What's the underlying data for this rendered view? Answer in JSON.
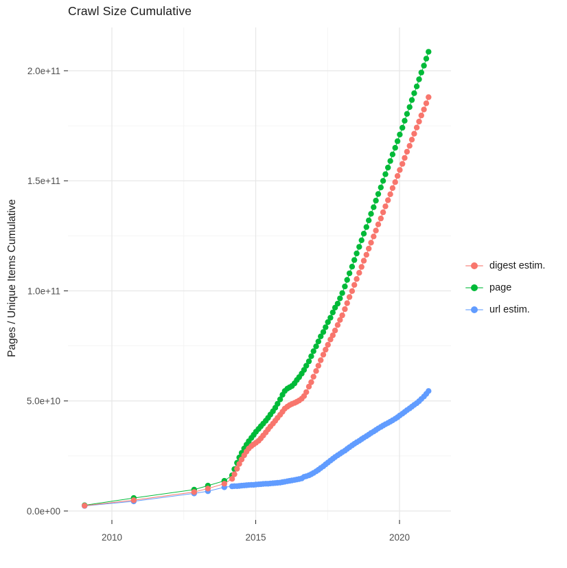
{
  "title": "Crawl Size Cumulative",
  "y_axis_title": "Pages / Unique Items Cumulative",
  "legend": {
    "position": "right",
    "items": [
      {
        "id": "digest",
        "label": "digest estim.",
        "color": "#F8766D"
      },
      {
        "id": "page",
        "label": "page",
        "color": "#00BA38"
      },
      {
        "id": "url",
        "label": "url estim.",
        "color": "#619CFF"
      }
    ]
  },
  "colors": {
    "background": "#ffffff",
    "major_grid": "#e7e7e7",
    "minor_grid": "#f2f2f2",
    "tick_mark": "#333333",
    "tick_label": "#4d4d4d",
    "digest": "#F8766D",
    "page": "#00BA38",
    "url": "#619CFF"
  },
  "chart_data": {
    "type": "scatter",
    "title": "Crawl Size Cumulative",
    "xlabel": "",
    "ylabel": "Pages / Unique Items Cumulative",
    "grid": true,
    "legend_position": "right",
    "x_unit": "year (decimal)",
    "value_scale": "values are billions; multiply by 1e9 for absolute counts",
    "xlim": [
      2008.45,
      2021.85
    ],
    "ylim_billions": [
      -4,
      220
    ],
    "x_major_ticks": [
      2010,
      2015,
      2020
    ],
    "x_tick_labels": [
      "2010",
      "2015",
      "2020"
    ],
    "x_minor_ticks": [
      2012.5,
      2017.5
    ],
    "y_major_ticks_billions": [
      0,
      50,
      100,
      150,
      200
    ],
    "y_tick_labels": [
      "0.0e+00",
      "5.0e+10",
      "1.0e+11",
      "1.5e+11",
      "2.0e+11"
    ],
    "y_minor_ticks_billions": [
      25,
      75,
      125,
      175
    ],
    "x": [
      2009.05,
      2010.76,
      2012.86,
      2013.34,
      2013.91,
      2014.18,
      2014.26,
      2014.35,
      2014.43,
      2014.51,
      2014.6,
      2014.68,
      2014.76,
      2014.85,
      2014.93,
      2015.01,
      2015.1,
      2015.18,
      2015.26,
      2015.35,
      2015.43,
      2015.51,
      2015.6,
      2015.68,
      2015.76,
      2015.85,
      2015.93,
      2016.01,
      2016.1,
      2016.18,
      2016.26,
      2016.35,
      2016.43,
      2016.51,
      2016.6,
      2016.68,
      2016.76,
      2016.85,
      2016.93,
      2017.01,
      2017.1,
      2017.18,
      2017.26,
      2017.35,
      2017.43,
      2017.51,
      2017.6,
      2017.68,
      2017.76,
      2017.85,
      2017.93,
      2018.01,
      2018.1,
      2018.18,
      2018.26,
      2018.35,
      2018.43,
      2018.51,
      2018.6,
      2018.68,
      2018.76,
      2018.85,
      2018.93,
      2019.01,
      2019.1,
      2019.18,
      2019.26,
      2019.35,
      2019.43,
      2019.51,
      2019.6,
      2019.68,
      2019.76,
      2019.85,
      2019.93,
      2020.01,
      2020.1,
      2020.18,
      2020.26,
      2020.35,
      2020.43,
      2020.51,
      2020.6,
      2020.68,
      2020.76,
      2020.85,
      2020.93,
      2021.01
    ],
    "series": [
      {
        "name": "digest estim.",
        "color": "#F8766D",
        "values_billions": [
          2.4,
          4.9,
          8.6,
          10.2,
          12.4,
          14.6,
          16.7,
          19.2,
          21.4,
          23.4,
          25.3,
          27.0,
          28.4,
          29.5,
          30.3,
          31.0,
          31.9,
          33.0,
          34.3,
          35.7,
          37.1,
          38.4,
          39.7,
          41.0,
          42.3,
          43.7,
          45.1,
          46.5,
          47.4,
          48.1,
          48.6,
          49.1,
          49.6,
          50.2,
          51.0,
          52.2,
          54.0,
          56.5,
          58.5,
          61.0,
          63.6,
          66.0,
          68.5,
          71.0,
          73.3,
          75.5,
          77.9,
          79.8,
          82.0,
          84.5,
          86.8,
          88.9,
          91.7,
          94.4,
          97.2,
          99.9,
          102.7,
          105.4,
          108.2,
          110.9,
          113.7,
          116.4,
          119.2,
          121.9,
          124.7,
          127.4,
          130.2,
          132.9,
          135.7,
          138.4,
          141.2,
          143.9,
          146.7,
          149.4,
          152.2,
          154.9,
          157.7,
          160.4,
          163.2,
          165.9,
          168.7,
          171.4,
          174.2,
          176.9,
          179.7,
          182.4,
          185.2,
          188.0
        ]
      },
      {
        "name": "page",
        "color": "#00BA38",
        "values_billions": [
          2.6,
          5.9,
          9.7,
          11.5,
          13.7,
          16.2,
          19.0,
          21.9,
          24.3,
          26.4,
          28.4,
          30.1,
          31.7,
          33.2,
          34.6,
          36.0,
          37.3,
          38.5,
          39.7,
          41.0,
          42.3,
          43.8,
          45.3,
          46.9,
          48.7,
          50.7,
          52.8,
          54.5,
          55.6,
          56.2,
          56.8,
          58.0,
          59.5,
          60.8,
          62.4,
          64.1,
          66.0,
          68.0,
          70.3,
          72.6,
          74.8,
          77.0,
          79.3,
          81.3,
          83.5,
          85.8,
          87.8,
          90.2,
          92.4,
          94.2,
          96.6,
          99.0,
          102.0,
          105.0,
          108.0,
          111.0,
          114.0,
          117.0,
          120.0,
          123.0,
          126.0,
          129.0,
          132.0,
          135.0,
          138.0,
          141.0,
          144.0,
          147.0,
          150.0,
          153.0,
          156.0,
          159.0,
          162.0,
          165.0,
          168.0,
          171.0,
          174.1,
          177.3,
          180.4,
          183.5,
          186.7,
          189.8,
          192.9,
          196.1,
          199.2,
          202.3,
          205.5,
          208.6
        ]
      },
      {
        "name": "url estim.",
        "color": "#619CFF",
        "values_billions": [
          2.3,
          4.4,
          8.0,
          9.0,
          10.8,
          11.2,
          11.3,
          11.3,
          11.4,
          11.5,
          11.6,
          11.7,
          11.8,
          11.9,
          11.9,
          12.0,
          12.1,
          12.2,
          12.3,
          12.4,
          12.4,
          12.5,
          12.6,
          12.7,
          12.8,
          12.9,
          13.1,
          13.3,
          13.5,
          13.7,
          13.9,
          14.1,
          14.3,
          14.5,
          14.8,
          15.5,
          15.8,
          16.2,
          16.7,
          17.3,
          18.0,
          18.7,
          19.5,
          20.3,
          21.2,
          22.0,
          22.9,
          23.7,
          24.5,
          25.3,
          26.0,
          26.7,
          27.4,
          28.2,
          29.0,
          29.8,
          30.5,
          31.2,
          31.9,
          32.6,
          33.3,
          34.0,
          34.7,
          35.4,
          36.1,
          36.8,
          37.5,
          38.2,
          38.8,
          39.4,
          40.0,
          40.6,
          41.2,
          41.9,
          42.6,
          43.4,
          44.2,
          45.0,
          45.8,
          46.6,
          47.4,
          48.2,
          49.0,
          49.9,
          50.9,
          52.0,
          53.2,
          54.5
        ]
      }
    ]
  }
}
